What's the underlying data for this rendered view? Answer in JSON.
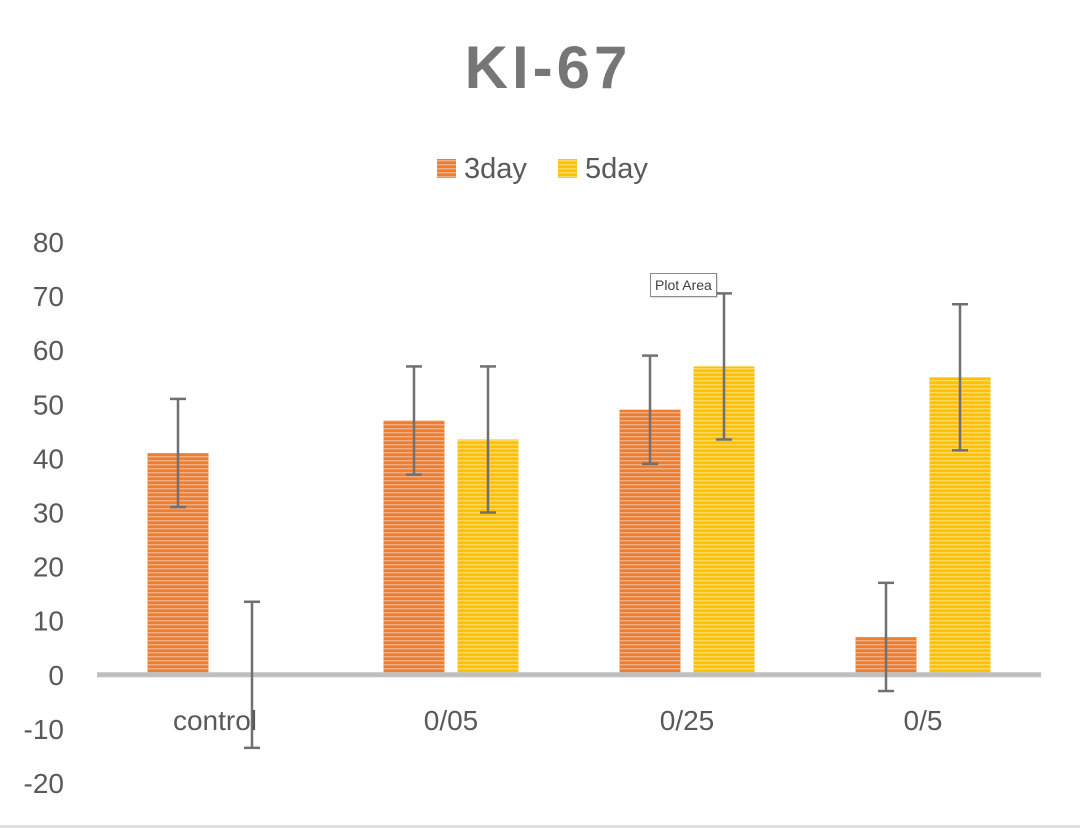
{
  "chart_data": {
    "type": "bar",
    "title": "KI-67",
    "xlabel": "",
    "ylabel": "",
    "categories": [
      "control",
      "0/05",
      "0/25",
      "0/5"
    ],
    "series": [
      {
        "name": "3day",
        "color": "#ED7D31",
        "values": [
          41,
          47,
          49,
          7
        ],
        "error": [
          10,
          10,
          10,
          10
        ]
      },
      {
        "name": "5day",
        "color": "#FFC000",
        "values": [
          0,
          43.5,
          57,
          55
        ],
        "error": [
          13.5,
          13.5,
          13.5,
          13.5
        ]
      }
    ],
    "ylim": [
      -20,
      80
    ],
    "yticks": [
      80,
      70,
      60,
      50,
      40,
      30,
      20,
      10,
      0,
      -10,
      -20
    ],
    "legend_position": "top",
    "grid": false,
    "bar_pattern": "horizontal-stripes",
    "error_bar_color": "#707070",
    "axis_color": "#bfbfbf",
    "text_color": "#595959",
    "title_color": "#767676"
  },
  "tooltip": {
    "text": "Plot Area"
  }
}
